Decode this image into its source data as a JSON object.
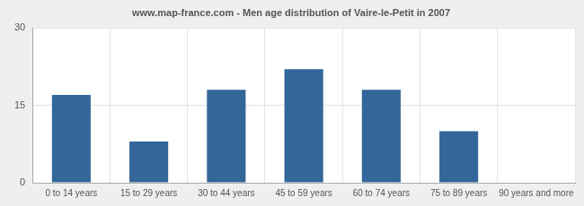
{
  "chart_data": {
    "type": "bar",
    "title": "www.map-france.com - Men age distribution of Vaire-le-Petit in 2007",
    "categories": [
      "0 to 14 years",
      "15 to 29 years",
      "30 to 44 years",
      "45 to 59 years",
      "60 to 74 years",
      "75 to 89 years",
      "90 years and more"
    ],
    "values": [
      17,
      8,
      18,
      22,
      18,
      10,
      0
    ],
    "color": "#336699",
    "ylim": [
      0,
      30
    ],
    "yticks": [
      0,
      15,
      30
    ],
    "grid": true
  }
}
